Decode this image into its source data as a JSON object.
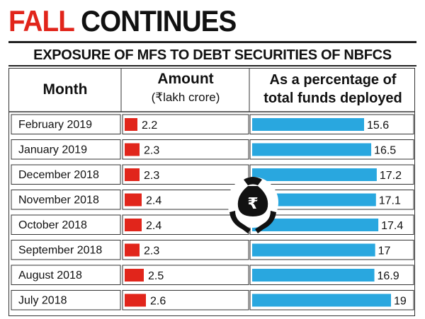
{
  "headline": {
    "word1": "FALL",
    "word2": "CONTINUES"
  },
  "subtitle": "EXPOSURE OF  MFS TO DEBT SECURITIES OF NBFCS",
  "columns": {
    "month": "Month",
    "amount": "Amount",
    "amount_unit": "(₹lakh crore)",
    "pct_line1": "As a percentage of",
    "pct_line2": "total funds deployed"
  },
  "colors": {
    "red": "#e1251b",
    "blue": "#29a7df",
    "text": "#111111",
    "row_bg": "#ffffff",
    "border": "#333333"
  },
  "icon": "rupee-money-bag-hands-icon",
  "chart_data": {
    "type": "table",
    "categories": [
      "February 2019",
      "January 2019",
      "December 2018",
      "November 2018",
      "October 2018",
      "September 2018",
      "August 2018",
      "July 2018"
    ],
    "series": [
      {
        "name": "Amount",
        "values": [
          2.2,
          2.3,
          2.3,
          2.4,
          2.4,
          2.3,
          2.5,
          2.6
        ]
      },
      {
        "name": "As a percentage of total funds deployed",
        "values": [
          15.6,
          16.5,
          17.2,
          17.1,
          17.4,
          17,
          16.9,
          19
        ]
      }
    ],
    "value_labels": {
      "Amount": [
        "2.2",
        "2.3",
        "2.3",
        "2.4",
        "2.4",
        "2.3",
        "2.5",
        "2.6"
      ],
      "As a percentage of total funds deployed": [
        "15.6",
        "16.5",
        "17.2",
        "17.1",
        "17.4",
        "17",
        "16.9",
        "19"
      ]
    }
  }
}
